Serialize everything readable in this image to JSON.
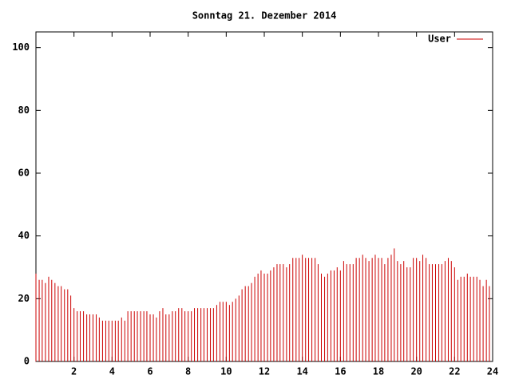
{
  "chart_data": {
    "type": "impulse",
    "title": "Sonntag 21. Dezember 2014",
    "x": [
      0,
      0.17,
      0.33,
      0.5,
      0.67,
      0.83,
      1,
      1.17,
      1.33,
      1.5,
      1.67,
      1.83,
      2,
      2.17,
      2.33,
      2.5,
      2.67,
      2.83,
      3,
      3.17,
      3.33,
      3.5,
      3.67,
      3.83,
      4,
      4.17,
      4.33,
      4.5,
      4.67,
      4.83,
      5,
      5.17,
      5.33,
      5.5,
      5.67,
      5.83,
      6,
      6.17,
      6.33,
      6.5,
      6.67,
      6.83,
      7,
      7.17,
      7.33,
      7.5,
      7.67,
      7.83,
      8,
      8.17,
      8.33,
      8.5,
      8.67,
      8.83,
      9,
      9.17,
      9.33,
      9.5,
      9.67,
      9.83,
      10,
      10.17,
      10.33,
      10.5,
      10.67,
      10.83,
      11,
      11.17,
      11.33,
      11.5,
      11.67,
      11.83,
      12,
      12.17,
      12.33,
      12.5,
      12.67,
      12.83,
      13,
      13.17,
      13.33,
      13.5,
      13.67,
      13.83,
      14,
      14.17,
      14.33,
      14.5,
      14.67,
      14.83,
      15,
      15.17,
      15.33,
      15.5,
      15.67,
      15.83,
      16,
      16.17,
      16.33,
      16.5,
      16.67,
      16.83,
      17,
      17.17,
      17.33,
      17.5,
      17.67,
      17.83,
      18,
      18.17,
      18.33,
      18.5,
      18.67,
      18.83,
      19,
      19.17,
      19.33,
      19.5,
      19.67,
      19.83,
      20,
      20.17,
      20.33,
      20.5,
      20.67,
      20.83,
      21,
      21.17,
      21.33,
      21.5,
      21.67,
      21.83,
      22,
      22.17,
      22.33,
      22.5,
      22.67,
      22.83,
      23,
      23.17,
      23.33,
      23.5,
      23.67,
      23.83
    ],
    "series": [
      {
        "name": "User",
        "color": "#cc0000",
        "values": [
          28,
          26,
          26,
          25,
          27,
          26,
          25,
          24,
          24,
          23,
          23,
          21,
          17,
          16,
          16,
          16,
          15,
          15,
          15,
          15,
          14,
          13,
          13,
          13,
          13,
          13,
          13,
          14,
          13,
          16,
          16,
          16,
          16,
          16,
          16,
          16,
          15,
          15,
          14,
          16,
          17,
          15,
          15,
          16,
          16,
          17,
          17,
          16,
          16,
          16,
          17,
          17,
          17,
          17,
          17,
          17,
          17,
          18,
          19,
          19,
          19,
          18,
          19,
          20,
          21,
          23,
          24,
          24,
          25,
          27,
          28,
          29,
          28,
          28,
          29,
          30,
          31,
          31,
          31,
          30,
          31,
          33,
          33,
          33,
          34,
          33,
          33,
          33,
          33,
          31,
          28,
          27,
          28,
          29,
          29,
          30,
          29,
          32,
          31,
          31,
          31,
          33,
          33,
          34,
          33,
          32,
          33,
          34,
          33,
          33,
          31,
          33,
          34,
          36,
          32,
          31,
          32,
          30,
          30,
          33,
          33,
          32,
          34,
          33,
          31,
          31,
          31,
          31,
          31,
          32,
          33,
          32,
          30,
          26,
          27,
          27,
          28,
          27,
          27,
          27,
          26,
          24,
          26,
          24
        ]
      }
    ],
    "xlim": [
      0,
      24
    ],
    "xticks": [
      2,
      4,
      6,
      8,
      10,
      12,
      14,
      16,
      18,
      20,
      22,
      24
    ],
    "ylim": [
      0,
      105
    ],
    "yticks": [
      0,
      20,
      40,
      60,
      80,
      100
    ],
    "legend": "top-right"
  }
}
